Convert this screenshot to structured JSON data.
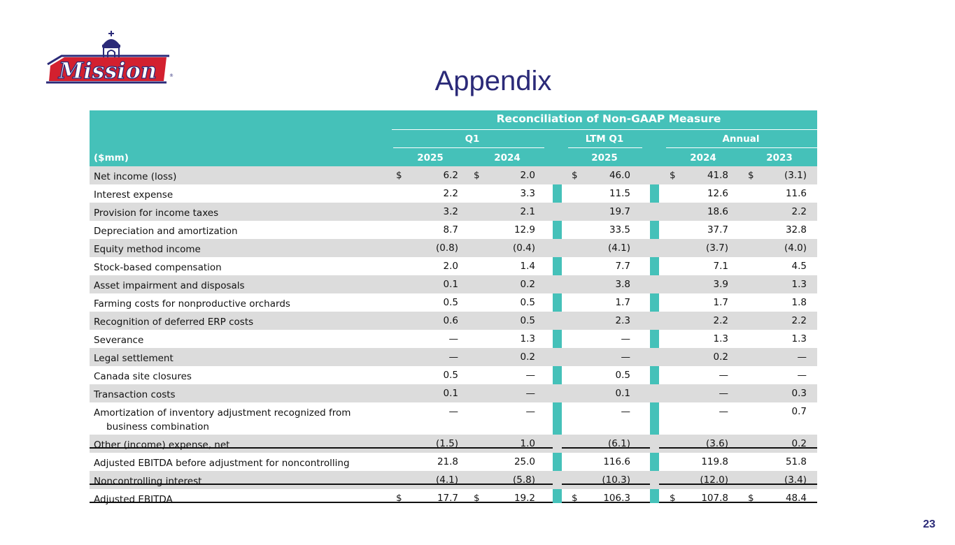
{
  "header": {
    "logo_text": "Mission",
    "title": "Appendix",
    "page_number": "23"
  },
  "table": {
    "title": "Reconciliation of Non-GAAP Measure",
    "unit_label": "($mm)",
    "groups": {
      "q1": "Q1",
      "ltm": "LTM Q1",
      "annual": "Annual"
    },
    "years": [
      "2025",
      "2024",
      "2025",
      "2024",
      "2023"
    ],
    "currency_symbol": "$",
    "rows": [
      {
        "label": "Net income (loss)",
        "values": [
          "6.2",
          "2.0",
          "46.0",
          "41.8",
          "(3.1)"
        ]
      },
      {
        "label": "Interest expense",
        "values": [
          "2.2",
          "3.3",
          "11.5",
          "12.6",
          "11.6"
        ]
      },
      {
        "label": "Provision for income taxes",
        "values": [
          "3.2",
          "2.1",
          "19.7",
          "18.6",
          "2.2"
        ]
      },
      {
        "label": "Depreciation and amortization",
        "values": [
          "8.7",
          "12.9",
          "33.5",
          "37.7",
          "32.8"
        ]
      },
      {
        "label": "Equity method income",
        "values": [
          "(0.8)",
          "(0.4)",
          "(4.1)",
          "(3.7)",
          "(4.0)"
        ]
      },
      {
        "label": "Stock-based compensation",
        "values": [
          "2.0",
          "1.4",
          "7.7",
          "7.1",
          "4.5"
        ]
      },
      {
        "label": "Asset impairment and disposals",
        "values": [
          "0.1",
          "0.2",
          "3.8",
          "3.9",
          "1.3"
        ]
      },
      {
        "label": "Farming costs for nonproductive orchards",
        "values": [
          "0.5",
          "0.5",
          "1.7",
          "1.7",
          "1.8"
        ]
      },
      {
        "label": "Recognition of deferred ERP costs",
        "values": [
          "0.6",
          "0.5",
          "2.3",
          "2.2",
          "2.2"
        ]
      },
      {
        "label": "Severance",
        "values": [
          "—",
          "1.3",
          "—",
          "1.3",
          "1.3"
        ]
      },
      {
        "label": "Legal settlement",
        "values": [
          "—",
          "0.2",
          "—",
          "0.2",
          "—"
        ]
      },
      {
        "label": "Canada site closures",
        "values": [
          "0.5",
          "—",
          "0.5",
          "—",
          "—"
        ]
      },
      {
        "label": "Transaction costs",
        "values": [
          "0.1",
          "—",
          "0.1",
          "—",
          "0.3"
        ]
      },
      {
        "label": "Amortization of inventory adjustment recognized from",
        "label2": "business combination",
        "values": [
          "—",
          "—",
          "—",
          "—",
          "0.7"
        ]
      },
      {
        "label": "Other (income) expense, net",
        "values": [
          "(1.5)",
          "1.0",
          "(6.1)",
          "(3.6)",
          "0.2"
        ]
      },
      {
        "label": "Adjusted EBITDA before adjustment for noncontrolling",
        "values": [
          "21.8",
          "25.0",
          "116.6",
          "119.8",
          "51.8"
        ]
      },
      {
        "label": "Noncontrolling interest",
        "values": [
          "(4.1)",
          "(5.8)",
          "(10.3)",
          "(12.0)",
          "(3.4)"
        ]
      },
      {
        "label": "Adjusted EBITDA",
        "values": [
          "17.7",
          "19.2",
          "106.3",
          "107.8",
          "48.4"
        ]
      }
    ]
  }
}
